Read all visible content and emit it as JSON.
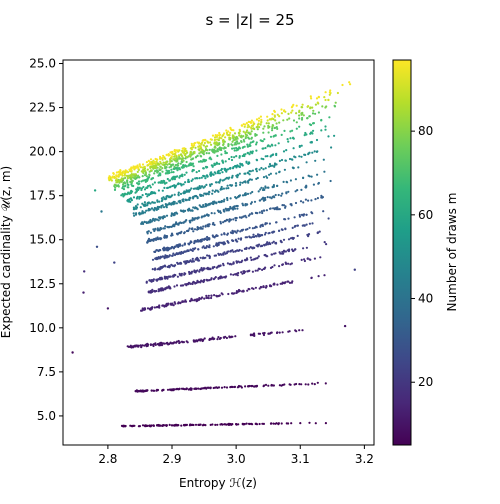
{
  "chart_data": {
    "type": "scatter",
    "title": "s = |z| =  25",
    "xlabel": "Entropy ℋ(z)",
    "ylabel": "Expected cardinality 𝒰(z, m)",
    "xlim": [
      2.73,
      3.215
    ],
    "ylim": [
      3.35,
      25.2
    ],
    "xticks": [
      2.8,
      2.9,
      3.0,
      3.1,
      3.2
    ],
    "xtick_labels": [
      "2.8",
      "2.9",
      "3.0",
      "3.1",
      "3.2"
    ],
    "yticks": [
      5.0,
      7.5,
      10.0,
      12.5,
      15.0,
      17.5,
      20.0,
      22.5,
      25.0
    ],
    "ytick_labels": [
      "5.0",
      "7.5",
      "10.0",
      "12.5",
      "15.0",
      "17.5",
      "20.0",
      "22.5",
      "25.0"
    ],
    "grid": false,
    "colorbar": {
      "label": "Number of draws m",
      "colormap": "viridis",
      "range": [
        5,
        97
      ],
      "ticks": [
        20,
        40,
        60,
        80
      ],
      "tick_labels": [
        "20",
        "40",
        "60",
        "80"
      ]
    },
    "bands": [
      {
        "m": 5,
        "entropy_range": [
          2.82,
          3.16
        ],
        "y_at_range": [
          4.42,
          4.62
        ],
        "spread": 0.04
      },
      {
        "m": 7,
        "entropy_range": [
          2.84,
          3.15
        ],
        "y_at_range": [
          6.4,
          6.88
        ],
        "spread": 0.06
      },
      {
        "m": 10,
        "entropy_range": [
          2.83,
          3.15
        ],
        "y_at_range": [
          8.9,
          10.05
        ],
        "spread": 0.1
      },
      {
        "m": 14,
        "entropy_range": [
          2.85,
          3.15
        ],
        "y_at_range": [
          11.0,
          13.05
        ],
        "spread": 0.12
      },
      {
        "m": 17,
        "entropy_range": [
          2.86,
          3.15
        ],
        "y_at_range": [
          12.0,
          14.15
        ],
        "spread": 0.12
      },
      {
        "m": 20,
        "entropy_range": [
          2.86,
          3.15
        ],
        "y_at_range": [
          12.6,
          14.9
        ],
        "spread": 0.13
      },
      {
        "m": 23,
        "entropy_range": [
          2.87,
          3.15
        ],
        "y_at_range": [
          13.3,
          15.6
        ],
        "spread": 0.13
      },
      {
        "m": 26,
        "entropy_range": [
          2.87,
          3.15
        ],
        "y_at_range": [
          13.9,
          16.2
        ],
        "spread": 0.13
      },
      {
        "m": 29,
        "entropy_range": [
          2.87,
          3.15
        ],
        "y_at_range": [
          14.3,
          16.8
        ],
        "spread": 0.13
      },
      {
        "m": 32,
        "entropy_range": [
          2.86,
          3.15
        ],
        "y_at_range": [
          14.9,
          17.6
        ],
        "spread": 0.14
      },
      {
        "m": 36,
        "entropy_range": [
          2.86,
          3.15
        ],
        "y_at_range": [
          15.4,
          18.4
        ],
        "spread": 0.14
      },
      {
        "m": 40,
        "entropy_range": [
          2.85,
          3.15
        ],
        "y_at_range": [
          15.9,
          19.0
        ],
        "spread": 0.14
      },
      {
        "m": 44,
        "entropy_range": [
          2.84,
          3.15
        ],
        "y_at_range": [
          16.4,
          19.7
        ],
        "spread": 0.15
      },
      {
        "m": 49,
        "entropy_range": [
          2.84,
          3.16
        ],
        "y_at_range": [
          16.8,
          20.4
        ],
        "spread": 0.16
      },
      {
        "m": 55,
        "entropy_range": [
          2.83,
          3.16
        ],
        "y_at_range": [
          17.2,
          21.0
        ],
        "spread": 0.16
      },
      {
        "m": 61,
        "entropy_range": [
          2.82,
          3.16
        ],
        "y_at_range": [
          17.5,
          21.6
        ],
        "spread": 0.17
      },
      {
        "m": 67,
        "entropy_range": [
          2.81,
          3.16
        ],
        "y_at_range": [
          17.8,
          22.1
        ],
        "spread": 0.18
      },
      {
        "m": 73,
        "entropy_range": [
          2.81,
          3.16
        ],
        "y_at_range": [
          18.0,
          22.6
        ],
        "spread": 0.18
      },
      {
        "m": 79,
        "entropy_range": [
          2.81,
          3.17
        ],
        "y_at_range": [
          18.2,
          23.0
        ],
        "spread": 0.19
      },
      {
        "m": 85,
        "entropy_range": [
          2.81,
          3.17
        ],
        "y_at_range": [
          18.3,
          23.3
        ],
        "spread": 0.2
      },
      {
        "m": 91,
        "entropy_range": [
          2.8,
          3.18
        ],
        "y_at_range": [
          18.4,
          23.6
        ],
        "spread": 0.2
      },
      {
        "m": 96,
        "entropy_range": [
          2.8,
          3.18
        ],
        "y_at_range": [
          18.5,
          23.9
        ],
        "spread": 0.2
      }
    ],
    "outliers": [
      {
        "x": 2.745,
        "y": 8.6,
        "m": 7
      },
      {
        "x": 2.762,
        "y": 12.0,
        "m": 13
      },
      {
        "x": 2.763,
        "y": 13.2,
        "m": 17
      },
      {
        "x": 2.783,
        "y": 14.6,
        "m": 27
      },
      {
        "x": 2.8,
        "y": 11.1,
        "m": 11
      },
      {
        "x": 2.81,
        "y": 13.7,
        "m": 24
      },
      {
        "x": 3.17,
        "y": 10.1,
        "m": 10
      },
      {
        "x": 3.185,
        "y": 13.3,
        "m": 23
      },
      {
        "x": 2.78,
        "y": 17.8,
        "m": 60
      },
      {
        "x": 2.79,
        "y": 16.6,
        "m": 42
      }
    ]
  }
}
